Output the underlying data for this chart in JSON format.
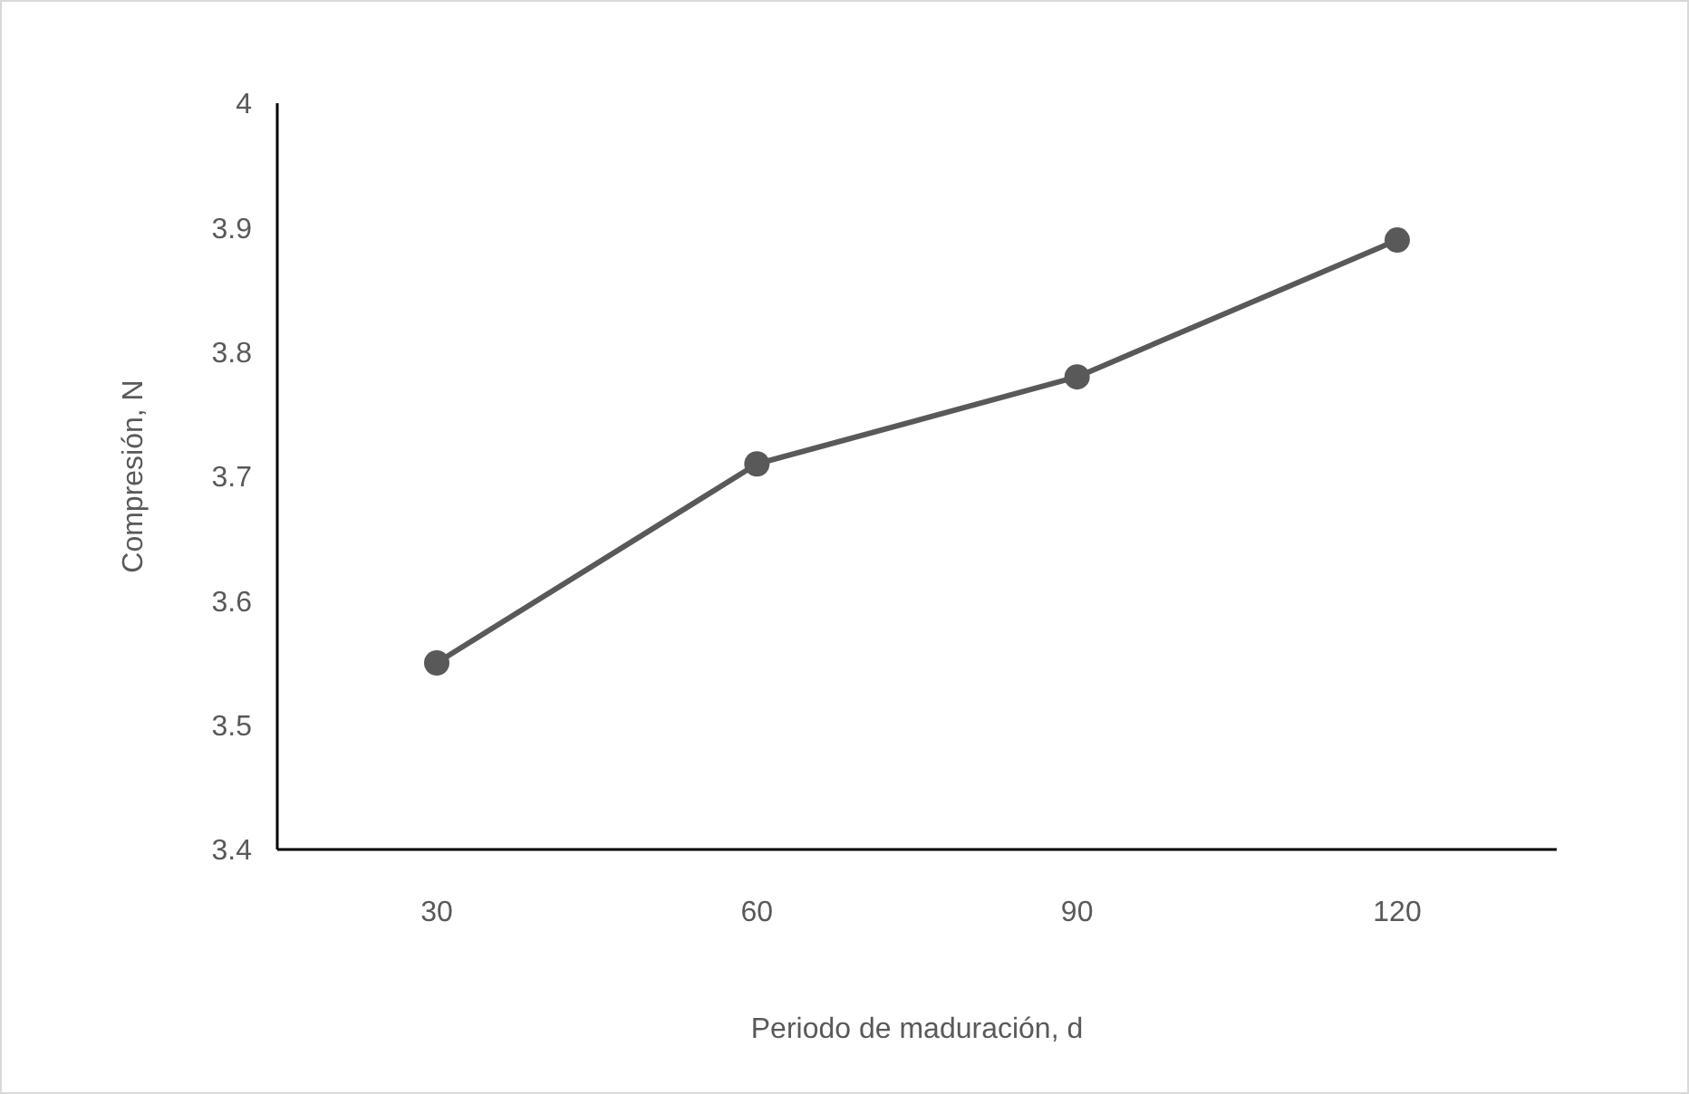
{
  "chart_data": {
    "type": "line",
    "xlabel": "Periodo de maduración, d",
    "ylabel": "Compresión, N",
    "categories": [
      "30",
      "60",
      "90",
      "120"
    ],
    "series": [
      {
        "color": "#595959",
        "values": [
          3.55,
          3.71,
          3.78,
          3.89
        ]
      }
    ],
    "ylim": [
      3.4,
      4
    ],
    "yticks": [
      3.4,
      3.5,
      3.6,
      3.7,
      3.8,
      3.9,
      4
    ],
    "grid": false,
    "legend": false,
    "marker": "circle",
    "line_style": "solid"
  }
}
